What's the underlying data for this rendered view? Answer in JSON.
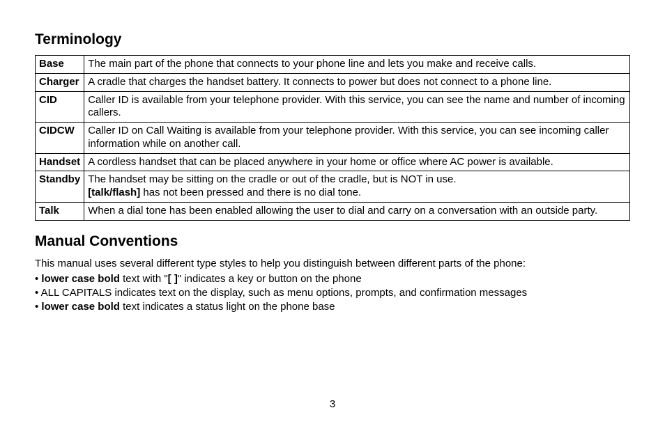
{
  "text_color": "#000000",
  "background_color": "#ffffff",
  "border_color": "#000000",
  "font_family": "Arial, Helvetica, sans-serif",
  "terminology": {
    "heading": "Terminology",
    "rows": [
      {
        "term": "Base",
        "definition": "The main part of the phone that connects to your phone line and lets you make and receive calls."
      },
      {
        "term": "Charger",
        "definition": "A cradle that charges the handset battery. It connects to power but does not connect to a phone line."
      },
      {
        "term": "CID",
        "definition": "Caller ID is available from your telephone provider. With this service, you can see the name and number of incoming callers."
      },
      {
        "term": "CIDCW",
        "definition": "Caller ID on Call Waiting is available from your telephone provider. With this service, you can see incoming caller information while on another call."
      },
      {
        "term": "Handset",
        "definition": "A cordless handset that can be placed anywhere in your home or office where AC power is available."
      },
      {
        "term": "Standby",
        "definition_pre": "The handset may be sitting on the cradle or out of the cradle, but is NOT in use.",
        "definition_bold": "[talk/flash]",
        "definition_post": " has not been pressed and there is no dial tone."
      },
      {
        "term": "Talk",
        "definition": "When a dial tone has been enabled allowing the user to dial and carry on a conversation with an outside party."
      }
    ]
  },
  "conventions": {
    "heading": "Manual Conventions",
    "intro": "This manual uses several different type styles to help you distinguish between different parts of the phone:",
    "items": [
      {
        "bold1": "lower case bold",
        "mid1": " text with \"",
        "bold2": "[ ]",
        "mid2": "\" indicates a key or button on the phone"
      },
      {
        "plain": "ALL CAPITALS indicates text on the display, such as menu options, prompts, and confirmation messages"
      },
      {
        "bold1": "lower case bold",
        "mid1": " text indicates a status light on the phone base"
      }
    ]
  },
  "page_number": "3"
}
